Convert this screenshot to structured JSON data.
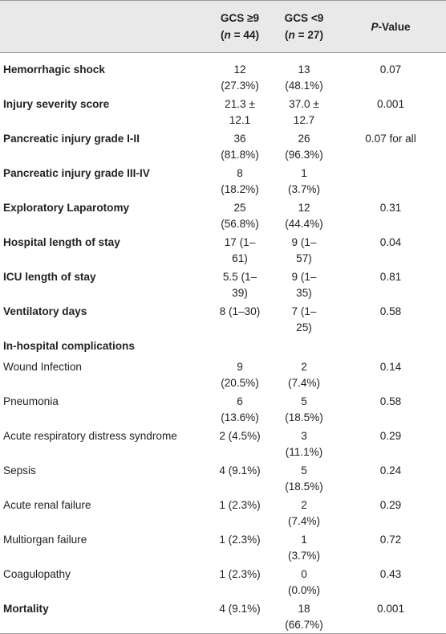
{
  "table": {
    "header": {
      "col1": {
        "title": "GCS ≥9",
        "sub": [
          "(",
          "n",
          " = 44)"
        ]
      },
      "col2": {
        "title": "GCS <9",
        "sub": [
          "(",
          "n",
          " = 27)"
        ]
      },
      "col3": {
        "title": [
          "P",
          "-Value"
        ]
      }
    },
    "rows": [
      {
        "label": "Hemorrhagic shock",
        "bold": true,
        "values": [
          "12 (27.3%)",
          "13 (48.1%)",
          "0.07"
        ]
      },
      {
        "label": "Injury severity score",
        "bold": true,
        "values": [
          "21.3 ± 12.1",
          "37.0 ± 12.7",
          "0.001"
        ]
      },
      {
        "label": "Pancreatic injury grade I-II",
        "bold": true,
        "values": [
          "36 (81.8%)",
          "26 (96.3%)",
          "0.07 for all"
        ]
      },
      {
        "label": "Pancreatic injury grade III-IV",
        "bold": true,
        "values": [
          "8 (18.2%)",
          "1 (3.7%)"
        ]
      },
      {
        "label": "Exploratory Laparotomy",
        "bold": true,
        "values": [
          "25 (56.8%)",
          "12 (44.4%)",
          "0.31"
        ]
      },
      {
        "label": "Hospital length of stay",
        "bold": true,
        "values": [
          "17 (1–61)",
          "9 (1–57)",
          "0.04"
        ]
      },
      {
        "label": "ICU length of stay",
        "bold": true,
        "values": [
          "5.5 (1–39)",
          "9 (1–35)",
          "0.81"
        ]
      },
      {
        "label": "Ventilatory days",
        "bold": true,
        "values": [
          "8 (1–30)",
          "7 (1–25)",
          "0.58"
        ]
      },
      {
        "label": "In-hospital complications",
        "bold": true,
        "values": []
      },
      {
        "label": "Wound Infection",
        "bold": false,
        "values": [
          "9 (20.5%)",
          "2 (7.4%)",
          "0.14"
        ]
      },
      {
        "label": "Pneumonia",
        "bold": false,
        "values": [
          "6 (13.6%)",
          "5 (18.5%)",
          "0.58"
        ]
      },
      {
        "label": "Acute respiratory distress syndrome",
        "bold": false,
        "values": [
          "2 (4.5%)",
          "3 (11.1%)",
          "0.29"
        ]
      },
      {
        "label": "Sepsis",
        "bold": false,
        "values": [
          "4 (9.1%)",
          "5 (18.5%)",
          "0.24"
        ]
      },
      {
        "label": "Acute renal failure",
        "bold": false,
        "values": [
          "1 (2.3%)",
          "2 (7.4%)",
          "0.29"
        ]
      },
      {
        "label": "Multiorgan failure",
        "bold": false,
        "values": [
          "1 (2.3%)",
          "1 (3.7%)",
          "0.72"
        ]
      },
      {
        "label": "Coagulopathy",
        "bold": false,
        "values": [
          "1 (2.3%)",
          "0 (0.0%)",
          "0.43"
        ]
      },
      {
        "label": "Mortality",
        "bold": true,
        "values": [
          "4 (9.1%)",
          "18 (66.7%)",
          "0.001"
        ]
      }
    ]
  }
}
